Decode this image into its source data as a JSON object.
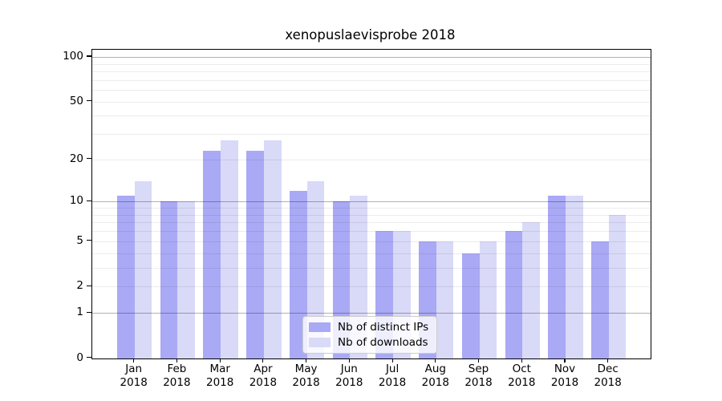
{
  "title": "xenopuslaevisprobe 2018",
  "legend": {
    "items": [
      {
        "label": "Nb of distinct IPs",
        "color": "#a9a9f5"
      },
      {
        "label": "Nb of downloads",
        "color": "#d9d9f8"
      }
    ]
  },
  "y_axis": {
    "tick_labels": [
      "100",
      "50",
      "20",
      "10",
      "5",
      "2",
      "1",
      "0"
    ],
    "tick_values": [
      100,
      50,
      20,
      10,
      5,
      2,
      1,
      0
    ],
    "minor_grid_values": [
      2,
      3,
      4,
      5,
      6,
      7,
      8,
      9,
      20,
      30,
      40,
      50,
      60,
      70,
      80,
      90
    ],
    "major_grid_values": [
      1,
      10,
      100
    ]
  },
  "x_axis": {
    "months": [
      "Jan",
      "Feb",
      "Mar",
      "Apr",
      "May",
      "Jun",
      "Jul",
      "Aug",
      "Sep",
      "Oct",
      "Nov",
      "Dec"
    ],
    "year": "2018"
  },
  "chart_data": {
    "type": "bar",
    "title": "xenopuslaevisprobe 2018",
    "categories": [
      "Jan 2018",
      "Feb 2018",
      "Mar 2018",
      "Apr 2018",
      "May 2018",
      "Jun 2018",
      "Jul 2018",
      "Aug 2018",
      "Sep 2018",
      "Oct 2018",
      "Nov 2018",
      "Dec 2018"
    ],
    "series": [
      {
        "name": "Nb of distinct IPs",
        "color": "#a9a9f5",
        "values": [
          11,
          10,
          23,
          23,
          12,
          10,
          6,
          5,
          4,
          6,
          11,
          5
        ]
      },
      {
        "name": "Nb of downloads",
        "color": "#d9d9f8",
        "values": [
          14,
          10,
          27,
          27,
          14,
          11,
          6,
          5,
          5,
          7,
          11,
          8
        ]
      }
    ],
    "xlabel": "",
    "ylabel": "",
    "y_scale": "log1p",
    "y_ticks": [
      0,
      1,
      2,
      5,
      10,
      20,
      50,
      100
    ],
    "ylim": [
      0,
      113
    ],
    "grid": true,
    "legend_position": "inside lower center"
  }
}
